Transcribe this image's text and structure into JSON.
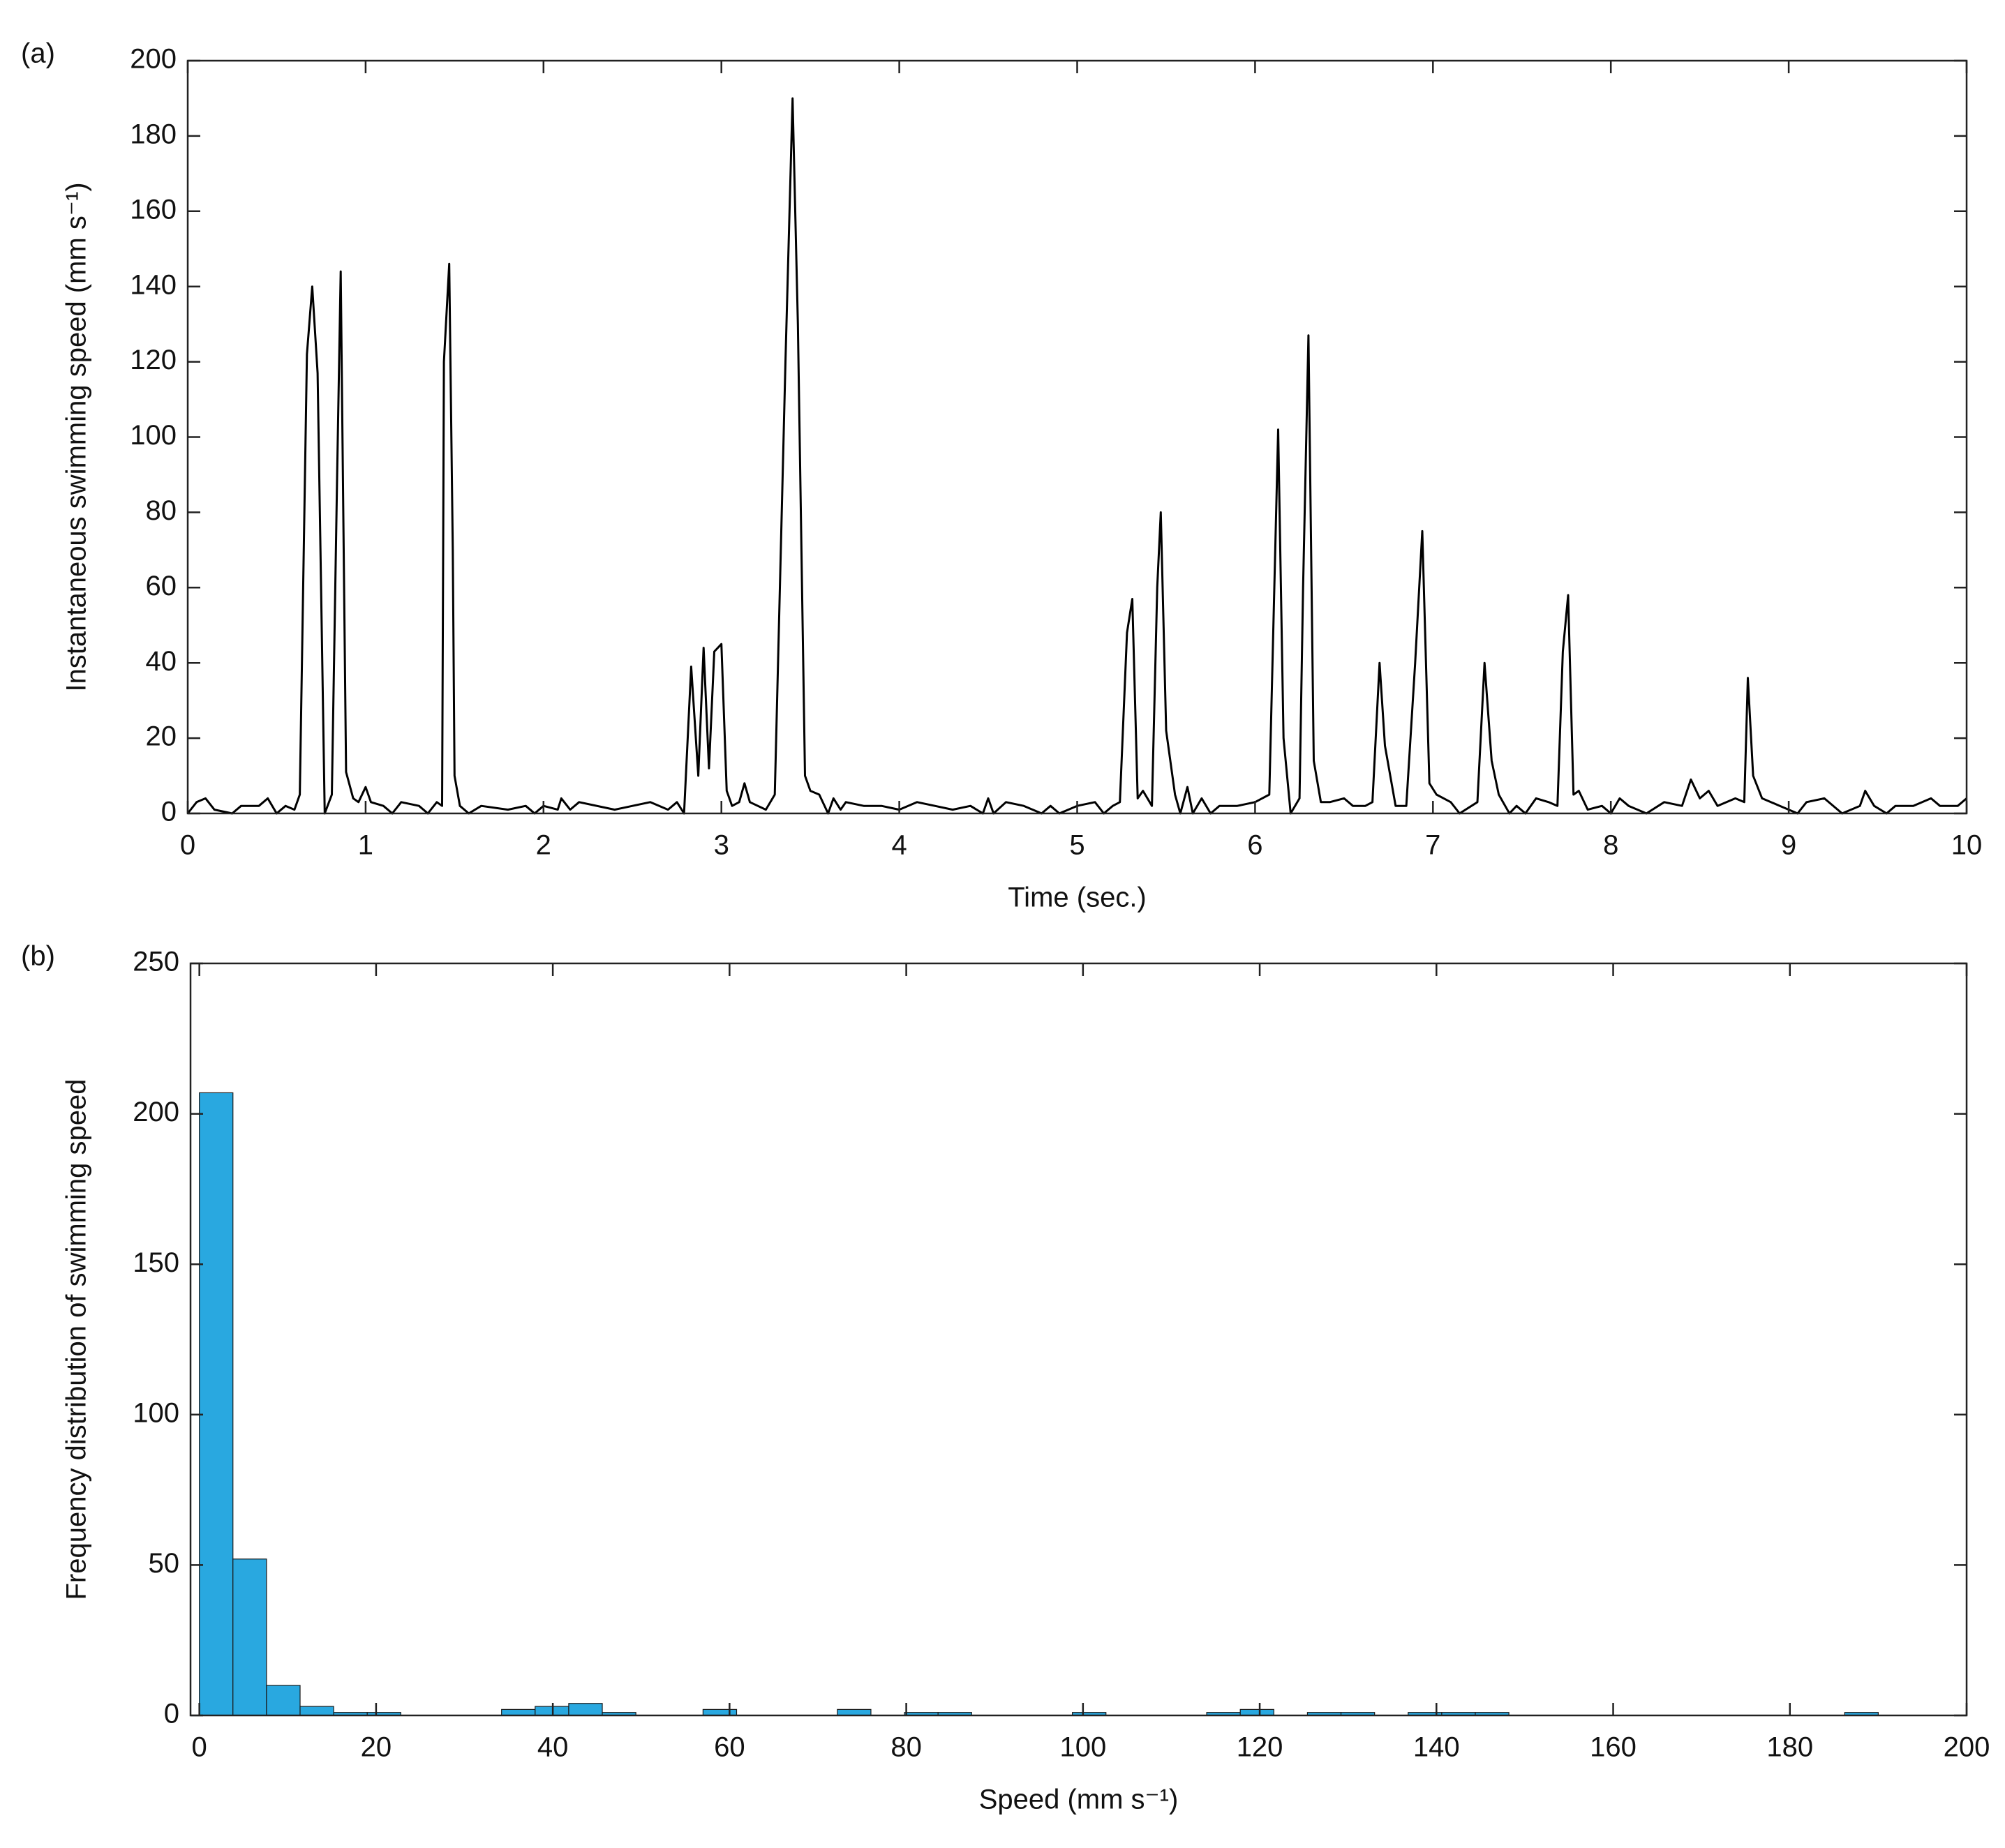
{
  "chart_data": [
    {
      "type": "line",
      "label": "(a)",
      "xlabel": "Time (sec.)",
      "ylabel": "Instantaneous swimming speed (mm s⁻¹)",
      "color": "#000000",
      "x": [
        0,
        0.05,
        0.1,
        0.15,
        0.25,
        0.3,
        0.4,
        0.45,
        0.5,
        0.55,
        0.6,
        0.63,
        0.67,
        0.7,
        0.73,
        0.77,
        0.81,
        0.84,
        0.86,
        0.89,
        0.93,
        0.96,
        1.0,
        1.03,
        1.1,
        1.15,
        1.2,
        1.3,
        1.35,
        1.4,
        1.43,
        1.44,
        1.47,
        1.49,
        1.5,
        1.53,
        1.58,
        1.65,
        1.8,
        1.9,
        1.95,
        2.0,
        2.08,
        2.1,
        2.15,
        2.2,
        2.4,
        2.5,
        2.6,
        2.7,
        2.75,
        2.79,
        2.83,
        2.87,
        2.9,
        2.93,
        2.96,
        3.0,
        3.03,
        3.06,
        3.1,
        3.13,
        3.16,
        3.25,
        3.3,
        3.36,
        3.4,
        3.43,
        3.47,
        3.5,
        3.55,
        3.6,
        3.63,
        3.67,
        3.7,
        3.8,
        3.9,
        4.0,
        4.1,
        4.2,
        4.3,
        4.4,
        4.47,
        4.5,
        4.53,
        4.6,
        4.7,
        4.8,
        4.85,
        4.9,
        5.0,
        5.1,
        5.15,
        5.2,
        5.24,
        5.28,
        5.31,
        5.34,
        5.37,
        5.42,
        5.45,
        5.47,
        5.5,
        5.55,
        5.58,
        5.62,
        5.65,
        5.7,
        5.75,
        5.8,
        5.9,
        6.0,
        6.08,
        6.13,
        6.16,
        6.2,
        6.25,
        6.27,
        6.3,
        6.33,
        6.37,
        6.42,
        6.5,
        6.55,
        6.62,
        6.66,
        6.7,
        6.73,
        6.79,
        6.85,
        6.9,
        6.94,
        6.98,
        7.02,
        7.1,
        7.15,
        7.25,
        7.29,
        7.33,
        7.37,
        7.43,
        7.47,
        7.52,
        7.58,
        7.65,
        7.7,
        7.73,
        7.76,
        7.79,
        7.82,
        7.87,
        7.95,
        8.0,
        8.05,
        8.1,
        8.2,
        8.3,
        8.4,
        8.45,
        8.5,
        8.55,
        8.6,
        8.7,
        8.75,
        8.77,
        8.8,
        8.85,
        8.95,
        9.05,
        9.1,
        9.2,
        9.3,
        9.4,
        9.43,
        9.48,
        9.55,
        9.6,
        9.7,
        9.8,
        9.85,
        9.95,
        10
      ],
      "values": [
        0,
        3,
        4,
        1,
        0,
        2,
        2,
        4,
        0,
        2,
        1,
        5,
        122,
        140,
        117,
        0,
        5,
        90,
        144,
        11,
        4,
        3,
        7,
        3,
        2,
        0,
        3,
        2,
        0,
        3,
        2,
        120,
        146,
        70,
        10,
        2,
        0,
        2,
        1,
        2,
        0,
        2,
        1,
        4,
        1,
        3,
        1,
        2,
        3,
        1,
        3,
        0,
        39,
        10,
        44,
        12,
        43,
        45,
        6,
        2,
        3,
        8,
        3,
        1,
        5,
        120,
        190,
        130,
        10,
        6,
        5,
        0,
        4,
        1,
        3,
        2,
        2,
        1,
        3,
        2,
        1,
        2,
        0,
        4,
        0,
        3,
        2,
        0,
        2,
        0,
        2,
        3,
        0,
        2,
        3,
        48,
        57,
        4,
        6,
        2,
        60,
        80,
        22,
        5,
        0,
        7,
        0,
        4,
        0,
        2,
        2,
        3,
        5,
        102,
        20,
        0,
        4,
        60,
        127,
        14,
        3,
        3,
        4,
        2,
        2,
        3,
        40,
        18,
        2,
        2,
        40,
        75,
        8,
        5,
        3,
        0,
        3,
        40,
        14,
        5,
        0,
        2,
        0,
        4,
        3,
        2,
        43,
        58,
        5,
        6,
        1,
        2,
        0,
        4,
        2,
        0,
        3,
        2,
        9,
        4,
        6,
        2,
        4,
        3,
        36,
        10,
        4,
        2,
        0,
        3,
        4,
        0,
        2,
        6,
        2,
        0,
        2,
        2,
        4,
        2,
        2,
        4
      ],
      "xlim": [
        0,
        10
      ],
      "xticks": [
        0,
        1,
        2,
        3,
        4,
        5,
        6,
        7,
        8,
        9,
        10
      ],
      "ylim": [
        0,
        200
      ],
      "yticks": [
        0,
        20,
        40,
        60,
        80,
        100,
        120,
        140,
        160,
        180,
        200
      ]
    },
    {
      "type": "histogram",
      "label": "(b)",
      "xlabel": "Speed (mm s⁻¹)",
      "ylabel": "Frequency distribution of swimming speed",
      "color": "#29a8e0",
      "bins": [
        0,
        3.8,
        7.6,
        11.4,
        15.2,
        19,
        22.8,
        26.6,
        30.4,
        34.2,
        38,
        41.8,
        45.6,
        49.4,
        53.2,
        57,
        60.8,
        64.6,
        68.4,
        72.2,
        76,
        79.8,
        83.6,
        87.4,
        91.2,
        95,
        98.8,
        102.6,
        106.4,
        110.2,
        114,
        117.8,
        121.6,
        125.4,
        129.2,
        133,
        136.8,
        140.6,
        144.4,
        148.2,
        152,
        155.8,
        159.6,
        163.4,
        167.2,
        171,
        174.8,
        178.6,
        182.4,
        186.2,
        190
      ],
      "values": [
        207,
        52,
        10,
        3,
        1,
        1,
        0,
        0,
        0,
        2,
        3,
        4,
        1,
        0,
        0,
        2,
        0,
        0,
        0,
        2,
        0,
        1,
        1,
        0,
        0,
        0,
        1,
        0,
        0,
        0,
        1,
        2,
        0,
        1,
        1,
        0,
        1,
        1,
        1,
        0,
        0,
        0,
        0,
        0,
        0,
        0,
        0,
        0,
        0,
        1
      ],
      "xlim": [
        -1,
        200
      ],
      "xticks": [
        0,
        20,
        40,
        60,
        80,
        100,
        120,
        140,
        160,
        180,
        200
      ],
      "ylim": [
        0,
        250
      ],
      "yticks": [
        0,
        50,
        100,
        150,
        200,
        250
      ]
    }
  ]
}
